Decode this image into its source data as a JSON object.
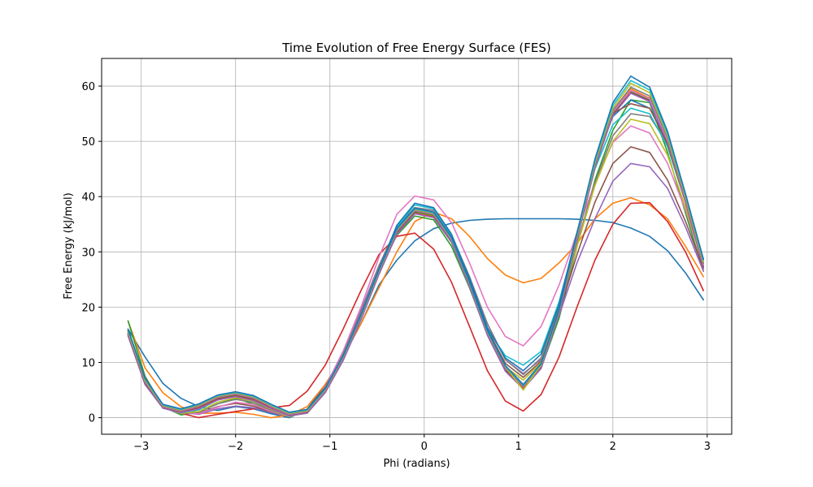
{
  "chart_data": {
    "type": "line",
    "title": "Time Evolution of Free Energy Surface (FES)",
    "xlabel": "Phi (radians)",
    "ylabel": "Free Energy (kJ/mol)",
    "xlim": [
      -3.42,
      3.26
    ],
    "ylim": [
      -3.0,
      65.0
    ],
    "xticks": [
      -3,
      -2,
      -1,
      0,
      1,
      2,
      3
    ],
    "yticks": [
      0,
      10,
      20,
      30,
      40,
      50,
      60
    ],
    "grid": true,
    "legend": "none",
    "x": [
      -3.14,
      -2.96,
      -2.77,
      -2.58,
      -2.39,
      -2.19,
      -2.0,
      -1.81,
      -1.62,
      -1.43,
      -1.24,
      -1.05,
      -0.86,
      -0.67,
      -0.48,
      -0.29,
      -0.1,
      0.1,
      0.29,
      0.48,
      0.67,
      0.86,
      1.05,
      1.24,
      1.43,
      1.62,
      1.81,
      2.0,
      2.19,
      2.39,
      2.58,
      2.77,
      2.96
    ],
    "series": [
      {
        "color": "#1f77b4",
        "values": [
          16.0,
          11.0,
          6.2,
          3.5,
          2.0,
          1.3,
          2.0,
          1.6,
          0.7,
          0.0,
          1.5,
          6.0,
          11.0,
          17.0,
          24.0,
          28.5,
          32.0,
          34.2,
          35.2,
          35.7,
          35.9,
          36.0,
          36.0,
          36.0,
          36.0,
          35.9,
          35.7,
          35.3,
          34.3,
          32.8,
          30.2,
          26.2,
          21.3
        ]
      },
      {
        "color": "#ff7f0e",
        "values": [
          17.5,
          9.0,
          4.5,
          2.0,
          0.8,
          0.8,
          1.0,
          0.6,
          0.0,
          0.5,
          2.0,
          6.0,
          11.0,
          17.0,
          23.5,
          30.0,
          35.5,
          37.2,
          36.0,
          32.8,
          28.8,
          25.8,
          24.4,
          25.2,
          28.0,
          31.5,
          36.0,
          38.8,
          39.8,
          38.5,
          36.0,
          31.0,
          25.5
        ]
      },
      {
        "color": "#2ca02c",
        "values": [
          17.5,
          7.5,
          2.0,
          0.5,
          1.0,
          2.5,
          3.5,
          2.5,
          1.2,
          0.2,
          1.2,
          5.0,
          11.5,
          18.5,
          26.5,
          33.0,
          36.5,
          35.8,
          31.0,
          23.5,
          15.0,
          8.5,
          5.5,
          9.0,
          18.0,
          31.0,
          43.0,
          52.0,
          57.5,
          57.0,
          48.0,
          37.0,
          26.5
        ]
      },
      {
        "color": "#d62728",
        "values": [
          15.0,
          6.0,
          1.8,
          0.8,
          0.0,
          0.6,
          1.1,
          1.6,
          1.8,
          2.2,
          4.8,
          9.5,
          16.0,
          23.0,
          29.5,
          32.8,
          33.4,
          30.5,
          24.5,
          16.5,
          8.5,
          3.0,
          1.2,
          4.2,
          11.0,
          20.0,
          28.5,
          35.0,
          38.8,
          38.9,
          35.5,
          30.0,
          23.0
        ]
      },
      {
        "color": "#9467bd",
        "values": [
          15.5,
          7.0,
          2.2,
          0.9,
          0.6,
          1.6,
          2.1,
          1.8,
          0.9,
          0.3,
          1.5,
          5.5,
          12.0,
          19.5,
          27.5,
          34.0,
          38.0,
          37.5,
          33.0,
          25.5,
          17.0,
          10.5,
          8.0,
          10.5,
          18.5,
          28.0,
          36.0,
          42.8,
          46.0,
          45.4,
          41.5,
          34.5,
          26.5
        ]
      },
      {
        "color": "#8c564b",
        "values": [
          15.8,
          7.2,
          2.3,
          0.9,
          0.8,
          2.0,
          2.6,
          2.1,
          1.0,
          0.2,
          1.5,
          5.5,
          11.5,
          19.0,
          27.0,
          33.5,
          37.2,
          36.8,
          32.0,
          24.5,
          16.0,
          9.8,
          7.3,
          10.2,
          19.0,
          29.5,
          39.0,
          46.0,
          49.0,
          48.0,
          43.0,
          35.5,
          27.0
        ]
      },
      {
        "color": "#e377c2",
        "values": [
          15.2,
          6.8,
          2.0,
          0.8,
          0.7,
          1.9,
          2.8,
          2.4,
          1.1,
          0.2,
          1.4,
          5.3,
          12.0,
          20.0,
          29.0,
          36.8,
          40.1,
          39.4,
          35.3,
          28.0,
          20.0,
          14.7,
          13.0,
          16.5,
          24.0,
          33.5,
          42.5,
          49.8,
          52.8,
          51.5,
          46.0,
          37.5,
          28.0
        ]
      },
      {
        "color": "#7f7f7f",
        "values": [
          15.0,
          6.5,
          1.8,
          0.7,
          1.0,
          2.5,
          3.3,
          2.8,
          1.3,
          0.2,
          1.2,
          5.0,
          11.5,
          19.0,
          27.5,
          34.5,
          38.0,
          37.5,
          33.0,
          25.5,
          17.0,
          10.5,
          7.8,
          10.8,
          20.0,
          31.5,
          42.5,
          51.0,
          55.0,
          54.5,
          49.5,
          39.5,
          28.5
        ]
      },
      {
        "color": "#bcbd22",
        "values": [
          15.3,
          6.6,
          1.9,
          0.8,
          1.1,
          2.8,
          3.6,
          3.0,
          1.5,
          0.2,
          1.1,
          5.0,
          11.0,
          18.5,
          26.5,
          33.5,
          37.0,
          36.5,
          32.0,
          24.0,
          15.5,
          9.2,
          6.8,
          10.0,
          19.5,
          31.0,
          42.0,
          50.0,
          54.0,
          53.2,
          47.5,
          38.0,
          27.8
        ]
      },
      {
        "color": "#17becf",
        "values": [
          15.5,
          6.7,
          2.0,
          0.9,
          1.4,
          3.2,
          4.0,
          3.4,
          1.9,
          0.4,
          1.0,
          4.8,
          10.8,
          18.3,
          26.8,
          34.5,
          38.5,
          37.8,
          33.0,
          25.0,
          16.0,
          11.2,
          9.5,
          12.0,
          21.0,
          33.0,
          45.0,
          53.0,
          56.0,
          55.0,
          49.0,
          39.0,
          28.5
        ]
      },
      {
        "color": "#1f77b4",
        "values": [
          15.6,
          6.8,
          2.1,
          1.0,
          1.6,
          3.4,
          4.2,
          3.5,
          2.0,
          0.5,
          1.0,
          4.8,
          10.8,
          18.3,
          26.8,
          34.8,
          38.8,
          38.0,
          33.2,
          25.2,
          16.3,
          10.8,
          8.5,
          11.5,
          20.5,
          33.5,
          46.0,
          54.5,
          57.5,
          56.0,
          50.0,
          39.5,
          28.7
        ]
      },
      {
        "color": "#ff7f0e",
        "values": [
          15.4,
          6.6,
          2.0,
          1.1,
          1.8,
          3.6,
          4.3,
          3.6,
          2.0,
          0.6,
          1.1,
          4.9,
          10.9,
          18.4,
          26.6,
          34.0,
          37.8,
          37.0,
          32.5,
          24.5,
          15.5,
          9.0,
          5.8,
          9.5,
          19.5,
          33.0,
          46.0,
          55.5,
          59.5,
          57.8,
          50.5,
          39.8,
          28.0
        ]
      },
      {
        "color": "#2ca02c",
        "values": [
          15.2,
          6.4,
          1.9,
          1.2,
          1.9,
          3.5,
          4.1,
          3.4,
          1.8,
          0.5,
          1.0,
          4.7,
          10.6,
          18.0,
          26.2,
          33.6,
          37.3,
          36.6,
          32.0,
          24.0,
          15.2,
          8.8,
          5.5,
          9.2,
          19.0,
          32.5,
          45.5,
          55.0,
          59.0,
          57.5,
          50.0,
          39.3,
          27.5
        ]
      },
      {
        "color": "#d62728",
        "values": [
          15.0,
          6.2,
          1.8,
          1.0,
          1.7,
          3.3,
          3.9,
          3.2,
          1.7,
          0.4,
          0.9,
          4.6,
          10.4,
          17.8,
          26.0,
          33.3,
          37.0,
          36.3,
          31.8,
          23.8,
          15.0,
          8.5,
          5.3,
          9.0,
          18.8,
          32.3,
          45.3,
          54.8,
          58.8,
          57.3,
          49.8,
          39.0,
          27.2
        ]
      },
      {
        "color": "#9467bd",
        "values": [
          14.8,
          6.0,
          1.7,
          0.9,
          1.6,
          3.2,
          3.8,
          3.1,
          1.6,
          0.3,
          0.8,
          4.5,
          10.3,
          17.7,
          25.9,
          33.2,
          36.9,
          36.2,
          31.7,
          23.7,
          14.9,
          8.4,
          5.2,
          8.9,
          18.7,
          32.2,
          45.2,
          54.7,
          58.7,
          57.2,
          49.7,
          38.9,
          27.1
        ]
      },
      {
        "color": "#8c564b",
        "values": [
          15.1,
          6.3,
          1.9,
          1.1,
          2.0,
          3.6,
          4.2,
          3.5,
          1.9,
          0.5,
          1.0,
          4.8,
          10.7,
          18.1,
          26.3,
          33.7,
          37.4,
          36.7,
          32.1,
          24.1,
          15.3,
          8.9,
          5.6,
          9.3,
          19.1,
          32.6,
          45.6,
          55.1,
          56.8,
          56.0,
          49.5,
          39.2,
          27.4
        ]
      },
      {
        "color": "#e377c2",
        "values": [
          15.3,
          6.5,
          2.0,
          1.2,
          2.1,
          3.7,
          4.3,
          3.6,
          2.0,
          0.6,
          1.1,
          4.9,
          10.8,
          18.2,
          26.4,
          33.8,
          37.5,
          36.8,
          32.2,
          24.2,
          15.4,
          9.0,
          5.7,
          9.4,
          19.2,
          32.7,
          45.7,
          55.3,
          59.2,
          57.7,
          50.2,
          39.4,
          27.6
        ]
      },
      {
        "color": "#7f7f7f",
        "values": [
          15.5,
          6.6,
          2.1,
          1.3,
          2.2,
          3.8,
          4.4,
          3.7,
          2.1,
          0.7,
          1.2,
          5.0,
          10.9,
          18.3,
          26.5,
          33.9,
          37.6,
          36.9,
          32.3,
          24.3,
          15.5,
          9.1,
          5.8,
          9.5,
          19.3,
          32.8,
          45.8,
          55.6,
          59.8,
          58.2,
          50.6,
          39.7,
          27.9
        ]
      },
      {
        "color": "#bcbd22",
        "values": [
          15.7,
          6.8,
          2.2,
          1.4,
          2.3,
          3.9,
          4.5,
          3.8,
          2.2,
          0.8,
          1.3,
          5.1,
          11.0,
          18.4,
          26.6,
          34.0,
          37.7,
          37.0,
          32.4,
          24.4,
          15.6,
          9.2,
          5.0,
          9.6,
          19.4,
          33.0,
          46.2,
          56.0,
          60.5,
          58.8,
          51.0,
          40.0,
          28.2
        ]
      },
      {
        "color": "#17becf",
        "values": [
          15.9,
          7.0,
          2.3,
          1.5,
          2.4,
          4.0,
          4.6,
          3.9,
          2.3,
          0.9,
          1.4,
          5.2,
          11.1,
          18.5,
          26.7,
          34.1,
          37.8,
          37.1,
          32.5,
          24.5,
          15.7,
          9.3,
          5.9,
          9.7,
          19.5,
          33.2,
          46.5,
          56.5,
          61.0,
          59.3,
          51.4,
          40.3,
          28.5
        ]
      },
      {
        "color": "#1f77b4",
        "values": [
          16.0,
          7.1,
          2.4,
          1.6,
          2.5,
          4.1,
          4.7,
          4.0,
          2.4,
          1.0,
          1.5,
          5.3,
          11.2,
          18.6,
          26.8,
          34.2,
          37.9,
          37.2,
          32.6,
          24.6,
          15.8,
          9.4,
          6.0,
          9.8,
          19.6,
          33.4,
          46.8,
          57.0,
          61.8,
          59.8,
          51.8,
          40.5,
          28.7
        ]
      }
    ]
  }
}
